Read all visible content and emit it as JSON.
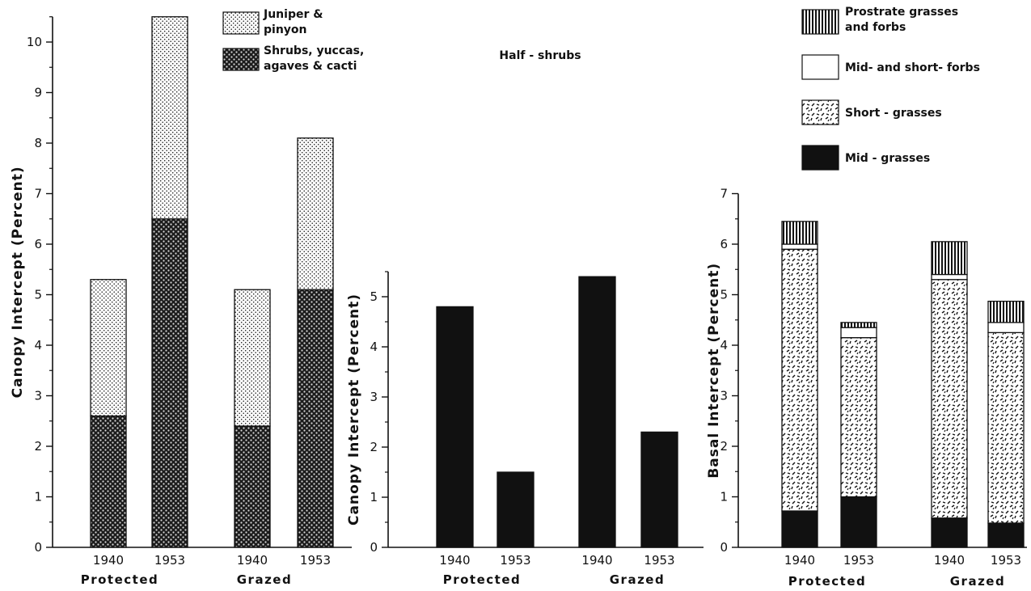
{
  "chart_data": [
    {
      "id": "panel1",
      "type": "bar",
      "stacked": true,
      "ylabel": "Canopy Intercept (Percent)",
      "ylim": [
        0,
        10.5
      ],
      "yticks": [
        0,
        1,
        2,
        3,
        4,
        5,
        6,
        7,
        8,
        9,
        10
      ],
      "categories": [
        "1940",
        "1953",
        "1940",
        "1953"
      ],
      "groups": [
        {
          "label": "Protected",
          "categories": [
            0,
            1
          ]
        },
        {
          "label": "Grazed",
          "categories": [
            2,
            3
          ]
        }
      ],
      "series": [
        {
          "name": "Shrubs, yuccas, agaves & cacti",
          "pattern": "crosshatch",
          "values": [
            2.6,
            6.5,
            2.4,
            5.1
          ]
        },
        {
          "name": "Juniper & pinyon",
          "pattern": "stipple",
          "values": [
            2.7,
            4.0,
            2.7,
            3.0
          ]
        }
      ],
      "legend": [
        {
          "lines": [
            "Juniper &",
            "pinyon"
          ],
          "pattern": "stipple"
        },
        {
          "lines": [
            "Shrubs, yuccas,",
            "agaves & cacti"
          ],
          "pattern": "crosshatch"
        }
      ],
      "grid": false
    },
    {
      "id": "panel2",
      "type": "bar",
      "title": "Half - shrubs",
      "ylabel": "Canopy Intercept (Percent)",
      "ylim": [
        0,
        5.5
      ],
      "yticks": [
        0,
        1,
        2,
        3,
        4,
        5
      ],
      "categories": [
        "1940",
        "1953",
        "1940",
        "1953"
      ],
      "groups": [
        {
          "label": "Protected",
          "categories": [
            0,
            1
          ]
        },
        {
          "label": "Grazed",
          "categories": [
            2,
            3
          ]
        }
      ],
      "series": [
        {
          "pattern": "solid",
          "values": [
            4.8,
            1.5,
            5.4,
            2.3
          ]
        }
      ],
      "grid": false
    },
    {
      "id": "panel3",
      "type": "bar",
      "stacked": true,
      "ylabel": "Basal Intercept (Percent)",
      "ylim": [
        0,
        7
      ],
      "yticks": [
        0,
        1,
        2,
        3,
        4,
        5,
        6,
        7
      ],
      "categories": [
        "1940",
        "1953",
        "1940",
        "1953"
      ],
      "groups": [
        {
          "label": "Protected",
          "categories": [
            0,
            1
          ]
        },
        {
          "label": "Grazed",
          "categories": [
            2,
            3
          ]
        }
      ],
      "series": [
        {
          "name": "Mid - grasses",
          "pattern": "solid",
          "values": [
            0.72,
            1.0,
            0.58,
            0.48
          ]
        },
        {
          "name": "Short - grasses",
          "pattern": "dashes",
          "values": [
            5.18,
            3.15,
            4.72,
            3.77
          ]
        },
        {
          "name": "Mid- and short- forbs",
          "pattern": "white",
          "values": [
            0.1,
            0.2,
            0.1,
            0.2
          ]
        },
        {
          "name": "Prostrate grasses and forbs",
          "pattern": "vstripe",
          "values": [
            0.45,
            0.1,
            0.65,
            0.42
          ]
        }
      ],
      "legend": [
        {
          "lines": [
            "Prostrate grasses",
            " and forbs"
          ],
          "pattern": "vstripe"
        },
        {
          "lines": [
            "Mid- and short- forbs"
          ],
          "pattern": "white"
        },
        {
          "lines": [
            "Short - grasses"
          ],
          "pattern": "dashes"
        },
        {
          "lines": [
            "Mid - grasses"
          ],
          "pattern": "solid"
        }
      ],
      "grid": false
    }
  ]
}
